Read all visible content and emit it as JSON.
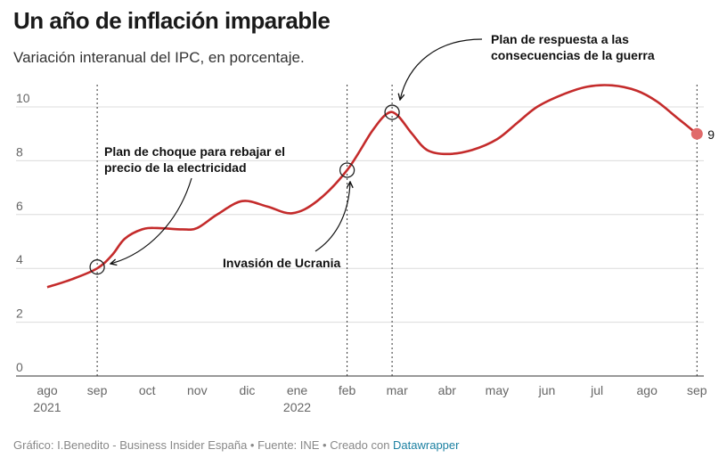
{
  "chart_data": {
    "type": "line",
    "title": "Un año de inflación imparable",
    "subtitle": "Variación interanual del IPC, en porcentaje.",
    "x_categories": [
      "ago",
      "sep",
      "oct",
      "nov",
      "dic",
      "ene",
      "feb",
      "mar",
      "abr",
      "may",
      "jun",
      "jul",
      "ago",
      "sep"
    ],
    "x_year_labels": [
      {
        "index": 0,
        "label": "2021"
      },
      {
        "index": 5,
        "label": "2022"
      }
    ],
    "ylim": [
      0,
      10
    ],
    "y_ticks": [
      0,
      2,
      4,
      6,
      8,
      10
    ],
    "series": [
      {
        "color": "#c42b2b",
        "points": [
          [
            0.0,
            3.3
          ],
          [
            0.5,
            3.6
          ],
          [
            1.0,
            4.0
          ],
          [
            1.3,
            4.5
          ],
          [
            1.55,
            5.1
          ],
          [
            1.9,
            5.45
          ],
          [
            2.2,
            5.5
          ],
          [
            2.7,
            5.45
          ],
          [
            3.0,
            5.5
          ],
          [
            3.4,
            6.0
          ],
          [
            3.9,
            6.5
          ],
          [
            4.4,
            6.3
          ],
          [
            4.9,
            6.05
          ],
          [
            5.4,
            6.5
          ],
          [
            6.0,
            7.65
          ],
          [
            6.5,
            9.1
          ],
          [
            6.8,
            9.75
          ],
          [
            7.0,
            9.7
          ],
          [
            7.3,
            9.0
          ],
          [
            7.6,
            8.4
          ],
          [
            8.0,
            8.25
          ],
          [
            8.5,
            8.4
          ],
          [
            9.0,
            8.8
          ],
          [
            9.4,
            9.4
          ],
          [
            9.8,
            10.0
          ],
          [
            10.3,
            10.45
          ],
          [
            10.8,
            10.75
          ],
          [
            11.3,
            10.8
          ],
          [
            11.8,
            10.6
          ],
          [
            12.2,
            10.2
          ],
          [
            12.6,
            9.6
          ],
          [
            13.0,
            9.0
          ]
        ]
      }
    ],
    "end_label": {
      "x": 13,
      "y": 9,
      "text": "9"
    },
    "events": [
      {
        "x": 1,
        "y": 4.05,
        "label": [
          "Plan de choque para rebajar el",
          "precio de la electricidad"
        ]
      },
      {
        "x": 6,
        "y": 7.65,
        "label": [
          "Invasión de Ucrania"
        ]
      },
      {
        "x": 6.9,
        "y": 9.8,
        "label": [
          "Plan de respuesta a las",
          "consecuencias de la guerra"
        ]
      }
    ],
    "grid": true,
    "legend": "none"
  },
  "footer": {
    "text": "Gráfico: I.Benedito - Business Insider España • Fuente: INE • Creado con ",
    "link": "Datawrapper"
  }
}
